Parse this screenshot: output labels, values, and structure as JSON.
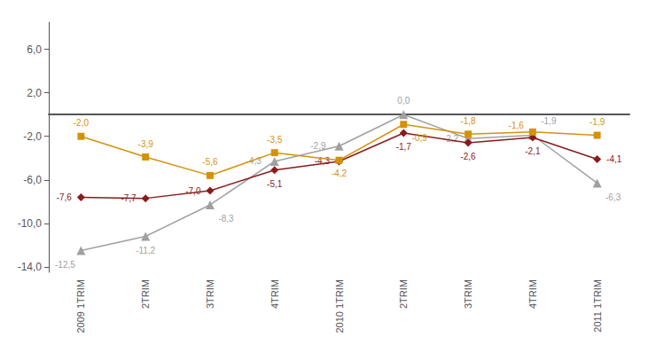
{
  "chart_data": {
    "type": "line",
    "categories": [
      "2009 1TRIM",
      "2TRIM",
      "3TRIM",
      "4TRIM",
      "2010 1TRIM",
      "2TRIM",
      "3TRIM",
      "4TRIM",
      "2011 1TRIM"
    ],
    "series": [
      {
        "color": "#A0A0A0",
        "marker": "triangle",
        "values": [
          -12.5,
          -11.2,
          -8.3,
          -4.3,
          -2.9,
          0.0,
          -2.2,
          -1.9,
          -6.3
        ],
        "value_labels": [
          "-12,5",
          "-11,2",
          "-8,3",
          "-4,3",
          "-2,9",
          "0,0",
          "-2,2",
          "-1,9",
          "-6,3"
        ]
      },
      {
        "color": "#8B1A1A",
        "marker": "diamond",
        "values": [
          -7.6,
          -7.7,
          -7.0,
          -5.1,
          -4.3,
          -1.7,
          -2.6,
          -2.1,
          -4.1
        ],
        "value_labels": [
          "-7,6",
          "-7,7",
          "-7,0",
          "-5,1",
          "-4,3",
          "-1,7",
          "-2,6",
          "-2,1",
          "-4,1"
        ]
      },
      {
        "color": "#D4920A",
        "marker": "square",
        "values": [
          -2.0,
          -3.9,
          -5.6,
          -3.5,
          -4.2,
          -0.9,
          -1.8,
          -1.6,
          -1.9
        ],
        "value_labels": [
          "-2,0",
          "-3,9",
          "-5,6",
          "-3,5",
          "-4,2",
          "-0,9",
          "-1,8",
          "-1,6",
          "-1,9"
        ]
      }
    ],
    "ylim": [
      -14.5,
      8.5
    ],
    "yticks": [
      {
        "value": -14.0,
        "label": "-14,0"
      },
      {
        "value": -10.0,
        "label": "-10,0"
      },
      {
        "value": -6.0,
        "label": "-6,0"
      },
      {
        "value": -2.0,
        "label": "-2,0"
      },
      {
        "value": 2.0,
        "label": "2,0"
      },
      {
        "value": 6.0,
        "label": "6,0"
      }
    ],
    "grid": false,
    "data_labels": true
  }
}
